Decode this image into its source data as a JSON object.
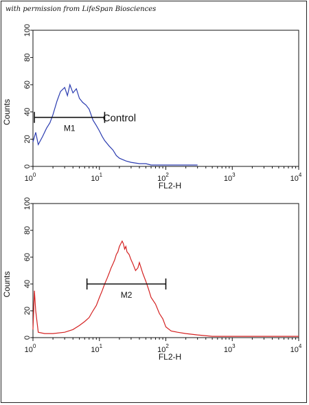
{
  "credit": "with permission from LifeSpan Biosciences",
  "chart_data": [
    {
      "type": "line",
      "xscale": "log",
      "xlim": [
        1,
        10000
      ],
      "ylim": [
        0,
        100
      ],
      "xlabel": "FL2-H",
      "ylabel": "Counts",
      "xticks": [
        1,
        10,
        100,
        1000,
        10000
      ],
      "yticks": [
        0,
        20,
        40,
        60,
        80,
        100
      ],
      "color": "#2a3bb0",
      "series": [
        {
          "x": [
            1,
            1.1,
            1.2,
            1.4,
            1.6,
            1.8,
            2,
            2.3,
            2.6,
            3,
            3.3,
            3.6,
            4,
            4.5,
            5,
            5.6,
            6.3,
            7,
            8,
            9,
            10,
            11,
            12,
            14,
            16,
            18,
            20,
            25,
            30,
            40,
            50,
            60,
            80,
            100,
            150,
            200,
            300
          ],
          "y": [
            18,
            25,
            16,
            22,
            28,
            32,
            38,
            48,
            55,
            58,
            52,
            60,
            54,
            57,
            50,
            47,
            45,
            42,
            34,
            30,
            26,
            22,
            19,
            15,
            12,
            8,
            6,
            4,
            3,
            2,
            2,
            1,
            1,
            1,
            1,
            1,
            1
          ]
        }
      ],
      "annotations": [
        {
          "text": "M1",
          "range": [
            1.05,
            12
          ],
          "y": 36
        },
        {
          "text": "Control",
          "x": 20,
          "y": 33
        }
      ]
    },
    {
      "type": "line",
      "xscale": "log",
      "xlim": [
        1,
        10000
      ],
      "ylim": [
        0,
        100
      ],
      "xlabel": "FL2-H",
      "ylabel": "Counts",
      "xticks": [
        1,
        10,
        100,
        1000,
        10000
      ],
      "yticks": [
        0,
        20,
        40,
        60,
        80,
        100
      ],
      "color": "#d42020",
      "series": [
        {
          "x": [
            1,
            1.05,
            1.1,
            1.2,
            1.5,
            2,
            3,
            4,
            5,
            6,
            7,
            8,
            9,
            10,
            11,
            12,
            13,
            14,
            15,
            16,
            17,
            18,
            19,
            20,
            21,
            22,
            23,
            24,
            25,
            26,
            28,
            30,
            32,
            35,
            38,
            40,
            45,
            50,
            55,
            60,
            70,
            80,
            90,
            100,
            120,
            150,
            200,
            300,
            500,
            1000,
            2000,
            5000,
            10000
          ],
          "y": [
            6,
            35,
            20,
            4,
            3,
            3,
            4,
            6,
            9,
            12,
            15,
            20,
            24,
            30,
            35,
            40,
            44,
            48,
            52,
            55,
            58,
            62,
            64,
            68,
            70,
            72,
            70,
            66,
            68,
            64,
            62,
            58,
            55,
            50,
            52,
            56,
            48,
            42,
            36,
            30,
            25,
            18,
            14,
            8,
            5,
            4,
            3,
            2,
            1,
            1,
            1,
            1,
            1
          ]
        }
      ],
      "annotations": [
        {
          "text": "M2",
          "range": [
            6.5,
            100
          ],
          "y": 40
        }
      ]
    }
  ]
}
